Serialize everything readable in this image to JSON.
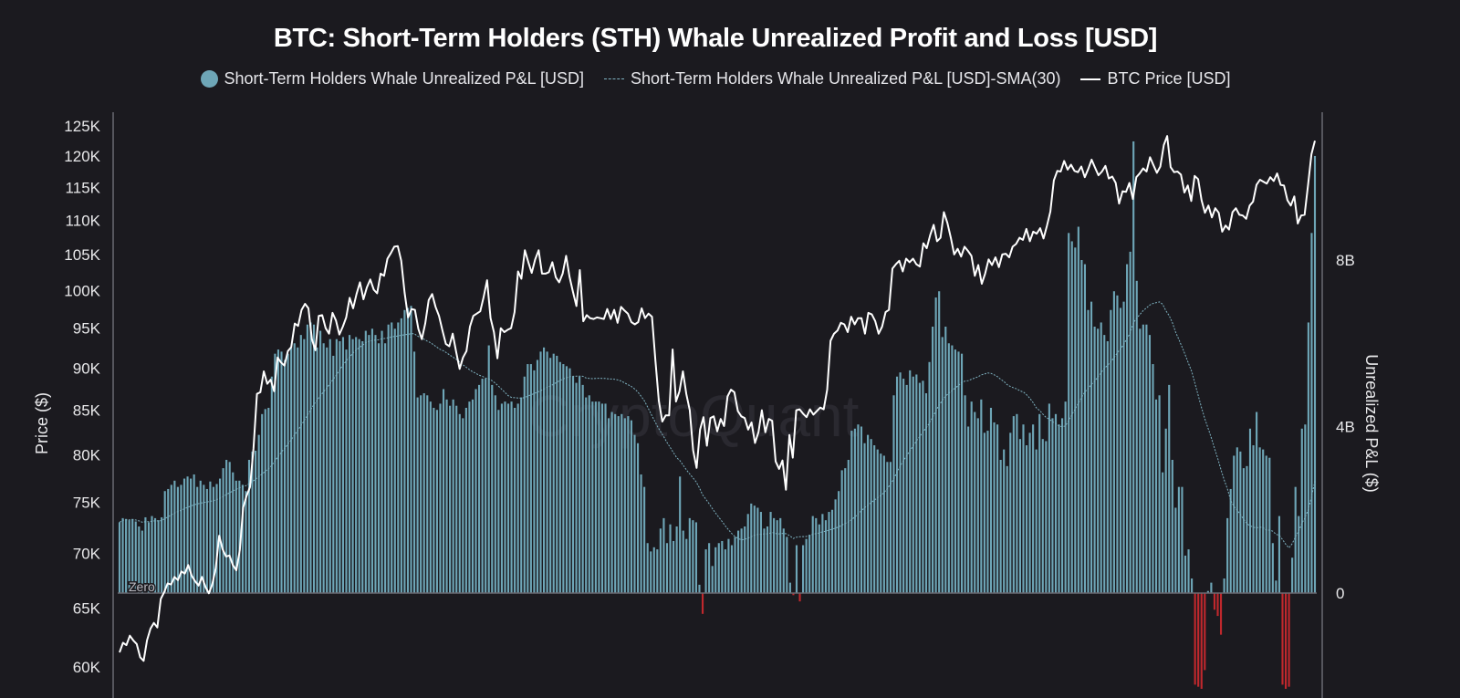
{
  "chart_data": {
    "type": "bar",
    "title": "BTC: Short-Term Holders (STH) Whale Unrealized Profit and Loss [USD]",
    "watermark": "CryptoQuant",
    "legend": [
      {
        "label": "Short-Term Holders Whale Unrealized P&L [USD]",
        "symbol": "dot",
        "color": "#6ea6b7"
      },
      {
        "label": "Short-Term Holders Whale Unrealized P&L [USD]-SMA(30)",
        "symbol": "dashed-line",
        "color": "#7fb3c2"
      },
      {
        "label": "BTC Price [USD]",
        "symbol": "line",
        "color": "#ffffff"
      }
    ],
    "legend_position": "top-center",
    "left_axis": {
      "title": "Price ($)",
      "scale": "log",
      "range": [
        58500,
        127000
      ],
      "ticks": [
        125000,
        120000,
        115000,
        110000,
        105000,
        100000,
        95000,
        90000,
        85000,
        80000,
        75000,
        70000,
        65000,
        60000
      ],
      "tick_labels": [
        "125K",
        "120K",
        "115K",
        "110K",
        "105K",
        "100K",
        "95K",
        "90K",
        "85K",
        "80K",
        "75K",
        "70K",
        "65K",
        "60K"
      ]
    },
    "right_axis": {
      "title": "Unrealized P&L ($)",
      "unit": "billion USD",
      "range": [
        -2.2,
        11.2
      ],
      "ticks": [
        0,
        4,
        8
      ],
      "tick_labels": [
        "0",
        "4B",
        "8B"
      ]
    },
    "zero_line_label": "Zero",
    "grid": false,
    "sma_window": 30,
    "series": [
      {
        "name": "Short-Term Holders Whale Unrealized P&L [USD]",
        "axis": "right",
        "unit": "billion USD",
        "color_positive": "#6ea6b7",
        "color_negative": "#c0282d",
        "values": [
          1.7,
          1.8,
          1.78,
          1.75,
          1.78,
          1.72,
          1.6,
          1.5,
          1.82,
          1.7,
          1.85,
          1.8,
          1.75,
          1.82,
          2.45,
          2.5,
          2.6,
          2.7,
          2.55,
          2.6,
          2.75,
          2.8,
          2.75,
          2.85,
          2.55,
          2.7,
          2.6,
          2.5,
          2.68,
          2.55,
          2.62,
          2.75,
          3.0,
          3.2,
          3.15,
          2.9,
          2.7,
          2.7,
          2.6,
          2.45,
          3.2,
          3.4,
          3.42,
          3.8,
          4.3,
          4.42,
          4.45,
          5.2,
          5.75,
          5.85,
          5.8,
          5.6,
          5.75,
          5.9,
          6.0,
          5.9,
          6.2,
          6.1,
          6.45,
          6.5,
          6.45,
          5.9,
          6.3,
          6.0,
          5.9,
          6.1,
          5.7,
          6.1,
          6.05,
          6.15,
          5.85,
          6.2,
          6.1,
          6.15,
          6.1,
          6.05,
          6.3,
          6.2,
          6.35,
          6.2,
          6.0,
          6.3,
          6.0,
          6.45,
          6.5,
          6.35,
          6.5,
          6.6,
          6.8,
          6.85,
          6.9,
          5.8,
          4.7,
          4.75,
          4.8,
          4.75,
          4.6,
          4.45,
          4.4,
          4.55,
          4.9,
          4.65,
          4.5,
          4.65,
          4.5,
          4.3,
          4.2,
          4.45,
          4.6,
          4.65,
          4.9,
          5.0,
          5.15,
          5.15,
          5.95,
          5.0,
          4.75,
          4.4,
          4.55,
          4.6,
          4.55,
          4.6,
          4.45,
          4.55,
          4.7,
          5.2,
          5.5,
          5.5,
          5.35,
          5.6,
          5.8,
          5.9,
          5.8,
          5.65,
          5.75,
          5.7,
          5.55,
          5.5,
          5.45,
          5.4,
          5.2,
          5.05,
          5.2,
          5.0,
          4.7,
          4.75,
          4.6,
          4.6,
          4.6,
          4.55,
          4.55,
          4.2,
          4.35,
          4.3,
          4.25,
          4.3,
          4.2,
          4.25,
          4.15,
          3.8,
          3.6,
          2.85,
          2.55,
          1.2,
          1.0,
          1.1,
          1.05,
          1.55,
          1.8,
          1.2,
          1.65,
          1.25,
          1.6,
          2.8,
          1.5,
          1.3,
          1.8,
          1.75,
          1.7,
          0.2,
          -0.5,
          1.05,
          1.2,
          0.65,
          1.1,
          1.2,
          1.25,
          1.05,
          1.3,
          1.15,
          1.35,
          1.5,
          1.55,
          1.6,
          1.9,
          2.15,
          2.1,
          2.05,
          1.95,
          1.55,
          1.6,
          1.95,
          1.8,
          1.75,
          1.8,
          1.55,
          1.35,
          0.25,
          -0.05,
          1.15,
          -0.2,
          1.15,
          1.3,
          1.4,
          1.85,
          1.8,
          1.65,
          1.9,
          1.75,
          1.95,
          2.0,
          2.25,
          2.45,
          2.95,
          3.0,
          3.2,
          3.9,
          3.95,
          4.05,
          4.0,
          3.6,
          3.8,
          3.7,
          3.55,
          3.45,
          3.35,
          3.3,
          3.15,
          3.15,
          4.75,
          5.2,
          5.3,
          5.15,
          5.0,
          5.35,
          5.2,
          5.25,
          5.05,
          5.1,
          4.8,
          5.55,
          6.4,
          7.1,
          7.25,
          6.15,
          6.4,
          6.0,
          5.95,
          5.85,
          5.8,
          5.75,
          4.75,
          4.0,
          4.6,
          4.35,
          4.2,
          4.65,
          3.85,
          3.9,
          4.45,
          4.1,
          4.05,
          3.2,
          3.45,
          3.05,
          3.85,
          4.25,
          4.3,
          3.7,
          4.05,
          3.55,
          3.85,
          4.05,
          3.45,
          4.3,
          3.7,
          3.65,
          4.55,
          4.2,
          4.3,
          4.05,
          4.2,
          4.6,
          8.65,
          8.45,
          8.3,
          8.8,
          8.0,
          7.9,
          6.8,
          7.0,
          6.4,
          6.35,
          6.5,
          6.2,
          6.05,
          6.8,
          7.25,
          7.15,
          6.85,
          7.0,
          7.9,
          8.2,
          10.85,
          7.5,
          6.35,
          6.45,
          6.45,
          6.2,
          5.5,
          4.65,
          4.75,
          2.9,
          3.95,
          5.0,
          3.2,
          2.05,
          2.55,
          2.55,
          0.9,
          1.05,
          0.35,
          -2.2,
          -2.25,
          -2.3,
          -1.85,
          0.05,
          0.25,
          -0.4,
          -0.55,
          -1.0,
          0.35,
          1.8,
          2.5,
          3.3,
          3.5,
          3.4,
          3.0,
          3.05,
          3.95,
          3.55,
          4.35,
          3.5,
          3.45,
          3.3,
          3.25,
          1.2,
          0.3,
          1.85,
          -2.2,
          -2.3,
          -2.25,
          0.85,
          2.55,
          1.85,
          3.95,
          4.05,
          6.5,
          8.65,
          10.5
        ]
      },
      {
        "name": "BTC Price [USD]",
        "axis": "left",
        "color": "#ffffff",
        "values": [
          61200,
          62000,
          61800,
          62600,
          62200,
          61900,
          60800,
          60500,
          62200,
          63200,
          63700,
          63300,
          65800,
          66400,
          67200,
          67100,
          67800,
          67500,
          68300,
          68100,
          68900,
          67900,
          67400,
          67000,
          67800,
          66900,
          66300,
          67100,
          68600,
          71700,
          70400,
          69700,
          69800,
          68900,
          68400,
          70300,
          74500,
          75700,
          76600,
          80700,
          86900,
          87100,
          89600,
          88100,
          88600,
          87200,
          91300,
          90700,
          90300,
          92100,
          92600,
          95600,
          95300,
          97400,
          98200,
          97600,
          93600,
          92200,
          96600,
          96700,
          95000,
          94300,
          97000,
          96000,
          94200,
          95200,
          96400,
          99000,
          97600,
          99500,
          101100,
          98800,
          100400,
          101500,
          100100,
          99600,
          102300,
          102000,
          104400,
          105200,
          106100,
          106200,
          104100,
          99700,
          96400,
          97500,
          97400,
          94900,
          93600,
          95600,
          98700,
          99500,
          97800,
          96600,
          94700,
          93000,
          92700,
          94300,
          92000,
          89900,
          91300,
          92100,
          95200,
          96600,
          96900,
          97200,
          99100,
          101400,
          96300,
          94500,
          91200,
          95000,
          94500,
          94800,
          95000,
          97100,
          102600,
          101600,
          105600,
          103900,
          102400,
          104300,
          105600,
          102300,
          102300,
          102500,
          103900,
          101800,
          101100,
          102300,
          104800,
          101900,
          99800,
          97900,
          102800,
          95900,
          96700,
          96300,
          96200,
          96400,
          96300,
          96200,
          97500,
          96200,
          97400,
          95700,
          97800,
          97300,
          96900,
          95800,
          95500,
          95800,
          97600,
          96300,
          96900,
          96500,
          91000,
          86100,
          83700,
          84400,
          84400,
          92300,
          86000,
          87200,
          89600,
          86900,
          85000,
          80500,
          78600,
          82800,
          84200,
          81000,
          84100,
          84300,
          82600,
          84000,
          83200,
          86600,
          87400,
          87100,
          84900,
          84300,
          84100,
          82800,
          83600,
          81300,
          82500,
          85000,
          82500,
          84000,
          83800,
          79300,
          78500,
          79400,
          76300,
          82200,
          79700,
          85000,
          85100,
          84600,
          84200,
          85100,
          84500,
          84900,
          85300,
          85100,
          87400,
          93400,
          94300,
          94700,
          95700,
          95500,
          94500,
          96500,
          95500,
          96300,
          96300,
          94300,
          97000,
          96800,
          95900,
          94300,
          95200,
          97100,
          97400,
          103000,
          103600,
          104100,
          102600,
          104400,
          103900,
          104400,
          103600,
          103300,
          106600,
          105900,
          107800,
          109300,
          106900,
          107400,
          111200,
          109600,
          107400,
          105000,
          105800,
          104700,
          106100,
          105500,
          104800,
          102000,
          103500,
          100900,
          102300,
          104300,
          103500,
          104600,
          103200,
          105000,
          105100,
          104600,
          106100,
          106500,
          107400,
          107100,
          108700,
          106900,
          108300,
          108000,
          108800,
          107300,
          109200,
          111300,
          116100,
          117600,
          117500,
          119200,
          117800,
          118600,
          117600,
          117400,
          118300,
          116600,
          117900,
          119400,
          118100,
          116900,
          117500,
          118400,
          116400,
          116700,
          115700,
          112500,
          114400,
          114300,
          115700,
          113200,
          116600,
          117200,
          118000,
          117500,
          119800,
          118500,
          117300,
          118300,
          121800,
          123300,
          118200,
          117400,
          117500,
          117000,
          114200,
          115300,
          112900,
          116800,
          116300,
          113000,
          111100,
          112200,
          110400,
          111800,
          111100,
          108300,
          109200,
          108600,
          111200,
          111800,
          110800,
          110700,
          110200,
          112200,
          112800,
          115400,
          116200,
          115900,
          115600,
          116600,
          116000,
          117200,
          115400,
          115300,
          113000,
          112200,
          113600,
          109500,
          110700,
          110800,
          115400,
          120300,
          122500
        ]
      },
      {
        "name": "Short-Term Holders Whale Unrealized P&L [USD]-SMA(30)",
        "axis": "right",
        "color": "#7fb3c2",
        "style": "dashed",
        "derived": "simple moving average (30) of the P&L series"
      }
    ]
  }
}
